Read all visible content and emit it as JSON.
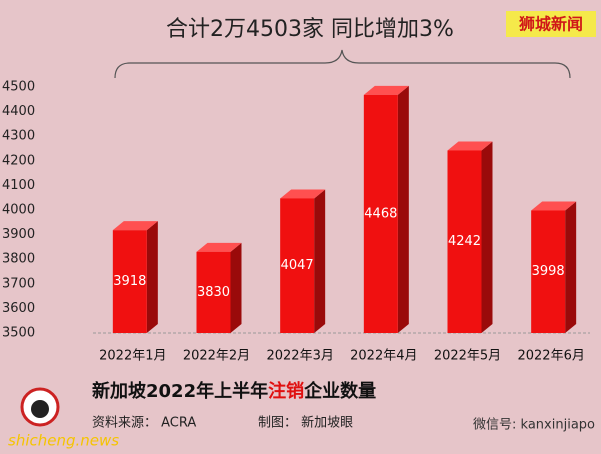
{
  "chart_data": {
    "type": "bar3d",
    "title": "合计2万4503家  同比增加3%",
    "badge": "狮城新闻",
    "footer_title_parts": [
      "新加坡2022年上半年",
      "注销",
      "企业数量"
    ],
    "source": "资料来源：  ACRA",
    "credit": "制图：  新加坡眼",
    "watermark": "shicheng.news",
    "wechat": "微信号: kanxinjiapo",
    "categories": [
      "2022年1月",
      "2022年2月",
      "2022年3月",
      "2022年4月",
      "2022年5月",
      "2022年6月"
    ],
    "values": [
      3918,
      3830,
      4047,
      4468,
      4242,
      3998
    ],
    "color": "#f01010",
    "ylim": [
      3500,
      4500
    ],
    "yticks": [
      3500,
      3600,
      3700,
      3800,
      3900,
      4000,
      4100,
      4200,
      4300,
      4400,
      4500
    ]
  }
}
